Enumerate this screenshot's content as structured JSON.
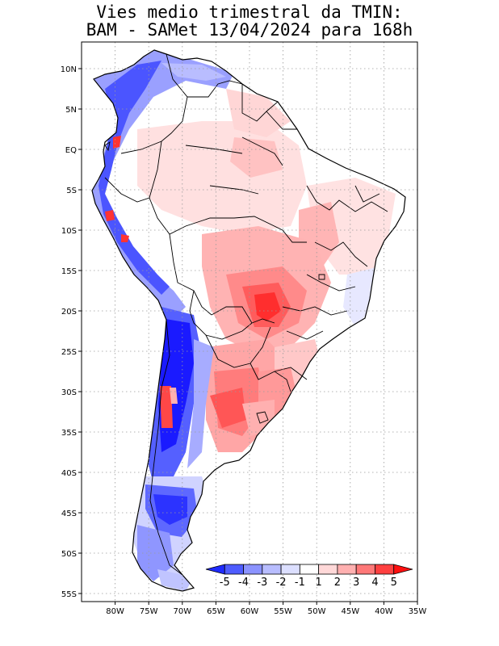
{
  "title_line1": "Vies medio trimestral da TMIN:",
  "title_line2": "BAM - SAMet 13/04/2024  para 168h",
  "map": {
    "projection": "lat-lon",
    "lon_range": [
      -85,
      -35
    ],
    "lat_range": [
      -55,
      10
    ],
    "grid": "dotted",
    "lat_ticks": [
      {
        "lat": 10,
        "label": "10N"
      },
      {
        "lat": 5,
        "label": "5N"
      },
      {
        "lat": 0,
        "label": "EQ"
      },
      {
        "lat": -5,
        "label": "5S"
      },
      {
        "lat": -10,
        "label": "10S"
      },
      {
        "lat": -15,
        "label": "15S"
      },
      {
        "lat": -20,
        "label": "20S"
      },
      {
        "lat": -25,
        "label": "25S"
      },
      {
        "lat": -30,
        "label": "30S"
      },
      {
        "lat": -35,
        "label": "35S"
      },
      {
        "lat": -40,
        "label": "40S"
      },
      {
        "lat": -45,
        "label": "45S"
      },
      {
        "lat": -50,
        "label": "50S"
      },
      {
        "lat": -55,
        "label": "55S"
      }
    ],
    "lon_ticks": [
      {
        "lon": -80,
        "label": "80W"
      },
      {
        "lon": -75,
        "label": "75W"
      },
      {
        "lon": -70,
        "label": "70W"
      },
      {
        "lon": -65,
        "label": "65W"
      },
      {
        "lon": -60,
        "label": "60W"
      },
      {
        "lon": -55,
        "label": "55W"
      },
      {
        "lon": -50,
        "label": "50W"
      },
      {
        "lon": -45,
        "label": "45W"
      },
      {
        "lon": -40,
        "label": "40W"
      },
      {
        "lon": -35,
        "label": "35W"
      }
    ]
  },
  "colorbar": {
    "labels": [
      "-5",
      "-4",
      "-3",
      "-2",
      "-1",
      "1",
      "2",
      "3",
      "4",
      "5"
    ],
    "colors": [
      "#1f2bff",
      "#4e5cff",
      "#8b93ff",
      "#b8bdff",
      "#dcdfff",
      "#ffffff",
      "#ffd8d8",
      "#ffb0b0",
      "#ff7878",
      "#ff4040",
      "#ff1010"
    ]
  },
  "palette": {
    "strong_blue": "#1a1aff",
    "mid_blue": "#6570ff",
    "light_blue": "#c9ccff",
    "pale_red": "#ffdcdc",
    "light_red": "#ffb3b3",
    "mid_red": "#ff7a7a",
    "strong_red": "#ff3333"
  }
}
